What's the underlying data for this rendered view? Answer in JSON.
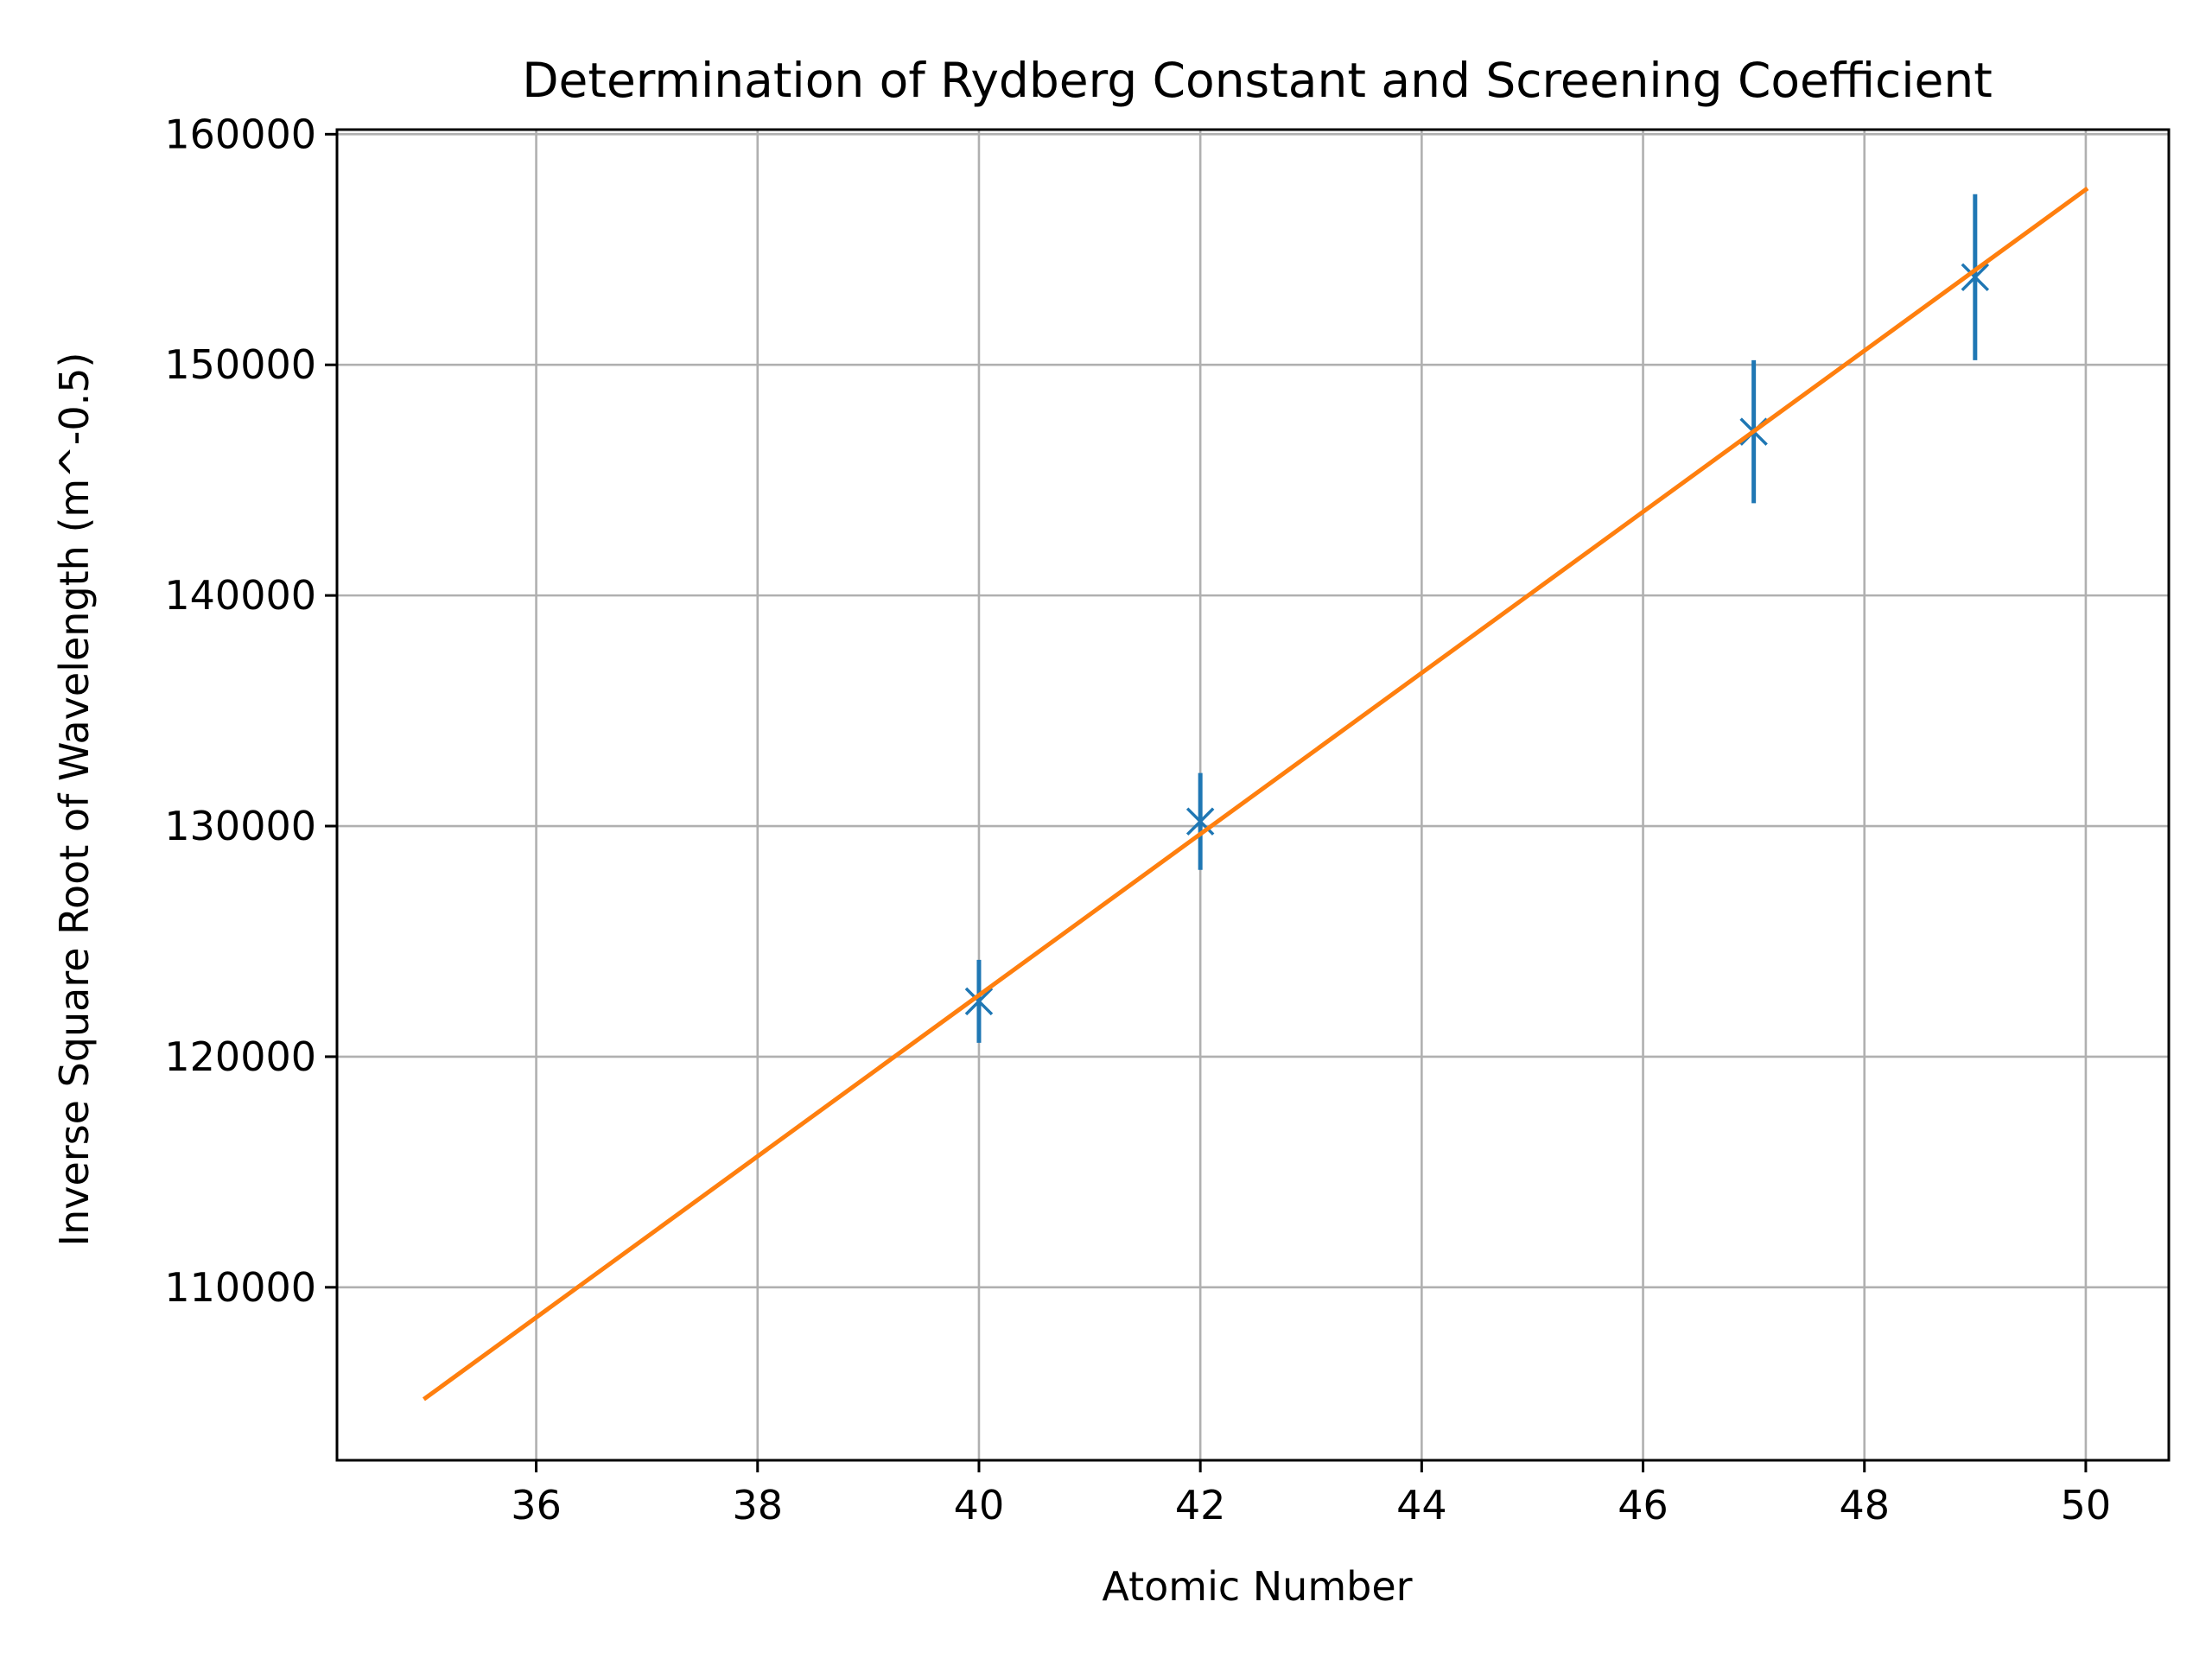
{
  "chart_data": {
    "type": "scatter",
    "title": "Determination of Rydberg Constant and Screening Coefficient",
    "xlabel": "Atomic Number",
    "ylabel": "Inverse Square Root of Wavelength (m^-0.5)",
    "xlim": [
      34.2,
      50.75
    ],
    "ylim": [
      102500,
      160200
    ],
    "xticks": [
      36,
      38,
      40,
      42,
      44,
      46,
      48,
      50
    ],
    "yticks": [
      110000,
      120000,
      130000,
      140000,
      150000,
      160000
    ],
    "grid": true,
    "colors": {
      "measured": "#1f77b4",
      "fit": "#ff7f0e",
      "grid": "#b0b0b0"
    },
    "series": [
      {
        "kind": "errorbar",
        "marker": "x",
        "points": [
          {
            "x": 40,
            "y": 122400,
            "yerr": 1800
          },
          {
            "x": 42,
            "y": 130200,
            "yerr": 2100
          },
          {
            "x": 47,
            "y": 147100,
            "yerr": 3100
          },
          {
            "x": 49,
            "y": 153800,
            "yerr": 3600
          }
        ]
      },
      {
        "kind": "line",
        "x": [
          35,
          50
        ],
        "y": [
          105200,
          157600
        ]
      }
    ]
  }
}
